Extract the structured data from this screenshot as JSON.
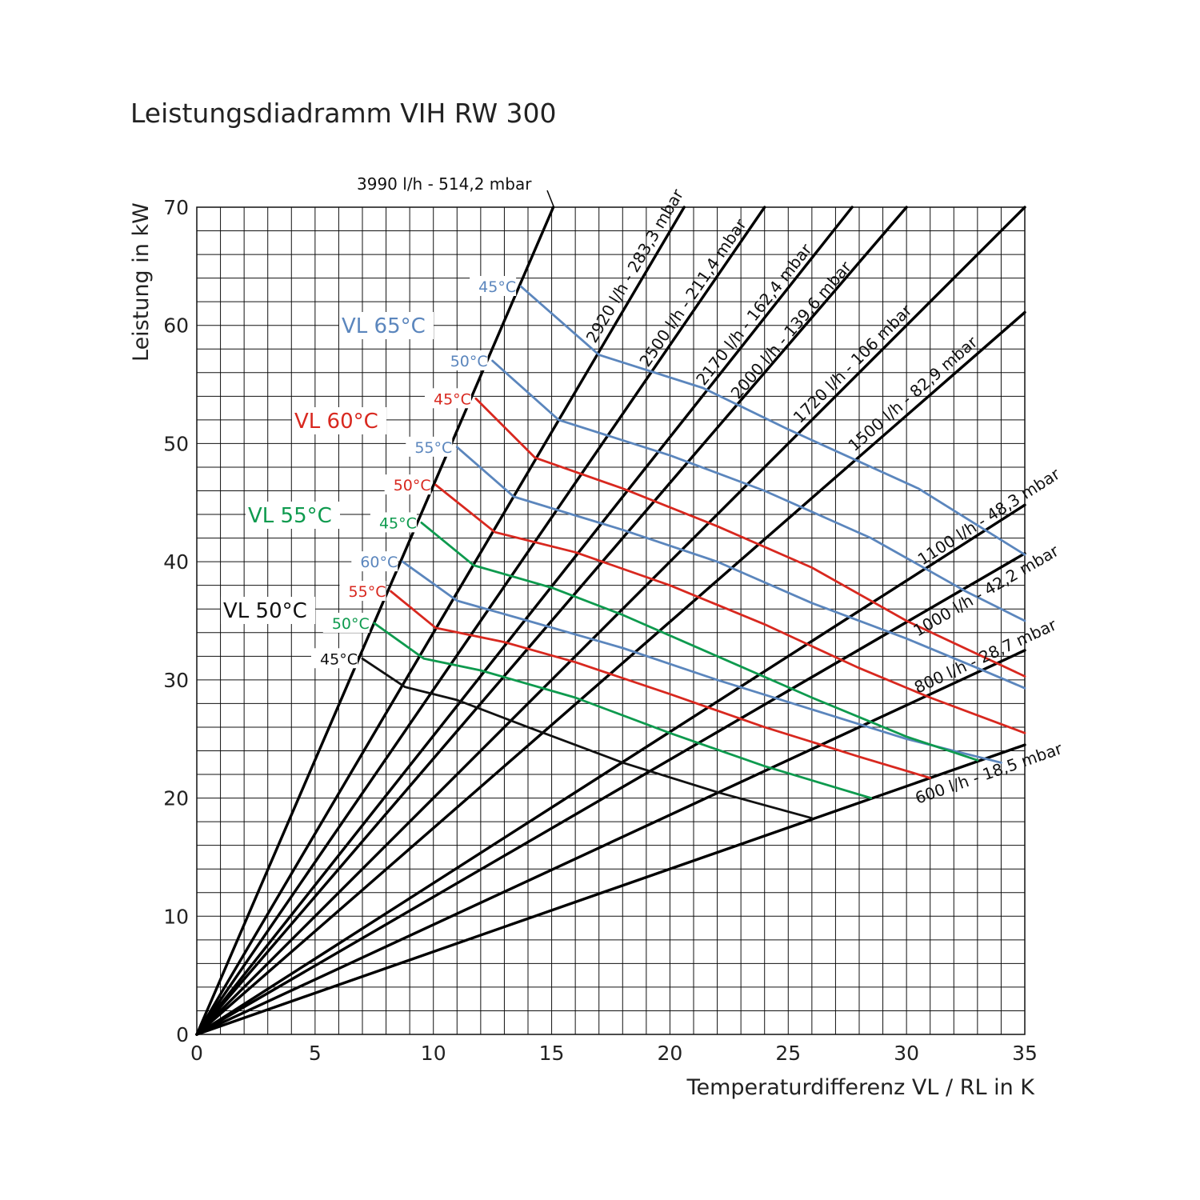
{
  "chart_data": {
    "type": "line",
    "title": "Leistungsdiadramm VIH RW 300",
    "xlabel": "Temperaturdifferenz VL / RL in K",
    "ylabel": "Leistung in kW",
    "xlim": [
      0,
      35
    ],
    "ylim": [
      0,
      70
    ],
    "x_ticks": [
      "0",
      "5",
      "10",
      "15",
      "20",
      "25",
      "30",
      "35"
    ],
    "y_ticks": [
      "0",
      "10",
      "20",
      "30",
      "40",
      "50",
      "60",
      "70"
    ],
    "grid": true,
    "colors": {
      "VL 65°C": "#5b86bd",
      "VL 60°C": "#d8281f",
      "VL 55°C": "#0e9a4e",
      "VL 50°C": "#111111",
      "flow_lines": "#000000"
    },
    "flow_lines": [
      {
        "label": "3990 l/h - 514,2 mbar",
        "end": [
          15.07,
          70
        ]
      },
      {
        "label": "2920 l/h - 283,3 mbar",
        "end": [
          20.6,
          70
        ]
      },
      {
        "label": "2500 l/h - 211,4 mbar",
        "end": [
          24.0,
          70
        ]
      },
      {
        "label": "2170 l/h - 162,4 mbar",
        "end": [
          27.7,
          70
        ]
      },
      {
        "label": "2000 l/h - 139,6 mbar",
        "end": [
          30.0,
          70
        ]
      },
      {
        "label": "1720 l/h - 106 mbar",
        "end": [
          35,
          70
        ]
      },
      {
        "label": "1500 l/h - 82,9 mbar",
        "end": [
          35,
          61.1
        ]
      },
      {
        "label": "1100 l/h - 48,3 mbar",
        "end": [
          35,
          44.8
        ]
      },
      {
        "label": "1000 l/h - 42,2 mbar",
        "end": [
          35,
          40.7
        ]
      },
      {
        "label": "800 l/h - 28,7 mbar",
        "end": [
          35,
          32.5
        ]
      },
      {
        "label": "600 l/h - 18,5 mbar",
        "end": [
          35,
          24.5
        ]
      }
    ],
    "series": [
      {
        "name": "VL 65°C",
        "start_label": "45°C",
        "x": [
          13.7,
          17.0,
          21.4,
          25.0,
          30.5,
          35.0
        ],
        "y": [
          63.3,
          57.5,
          54.7,
          51.2,
          46.2,
          40.6
        ]
      },
      {
        "name": "VL 65°C",
        "start_label": "50°C",
        "x": [
          12.5,
          15.3,
          20.0,
          24.0,
          28.5,
          32.5,
          35.0
        ],
        "y": [
          57.0,
          52.0,
          49.0,
          46.0,
          42.0,
          37.5,
          35.0
        ]
      },
      {
        "name": "VL 65°C",
        "start_label": "55°C",
        "x": [
          11.0,
          13.4,
          18.0,
          22.0,
          26.0,
          30.0,
          33.0,
          35.0
        ],
        "y": [
          49.7,
          45.5,
          42.7,
          40.0,
          36.5,
          33.5,
          31.0,
          29.3
        ]
      },
      {
        "name": "VL 65°C",
        "start_label": "60°C",
        "x": [
          8.7,
          11.0,
          14.0,
          18.0,
          22.0,
          26.0,
          30.0,
          34.0
        ],
        "y": [
          40.0,
          36.7,
          35.0,
          32.7,
          30.0,
          27.5,
          25.0,
          23.0
        ]
      },
      {
        "name": "VL 60°C",
        "start_label": "45°C",
        "x": [
          11.8,
          14.3,
          18.0,
          22.0,
          26.0,
          30.0,
          35.0
        ],
        "y": [
          53.8,
          48.8,
          46.2,
          43.0,
          39.5,
          35.0,
          30.3
        ]
      },
      {
        "name": "VL 60°C",
        "start_label": "50°C",
        "x": [
          10.1,
          12.6,
          16.0,
          20.0,
          24.0,
          28.0,
          31.0,
          35.0
        ],
        "y": [
          46.5,
          42.5,
          40.8,
          38.0,
          34.7,
          31.0,
          28.5,
          25.5
        ]
      },
      {
        "name": "VL 60°C",
        "start_label": "55°C",
        "x": [
          8.2,
          10.1,
          13.0,
          16.0,
          20.0,
          24.0,
          28.0,
          31.0
        ],
        "y": [
          37.5,
          34.4,
          33.2,
          31.5,
          28.8,
          26.0,
          23.5,
          21.7
        ]
      },
      {
        "name": "VL 55°C",
        "start_label": "45°C",
        "x": [
          9.5,
          11.7,
          15.0,
          18.0,
          22.0,
          26.0,
          30.0,
          33.0
        ],
        "y": [
          43.3,
          39.7,
          37.8,
          35.5,
          32.0,
          28.5,
          25.2,
          23.2
        ]
      },
      {
        "name": "VL 55°C",
        "start_label": "50°C",
        "x": [
          7.5,
          9.6,
          12.0,
          16.0,
          20.0,
          24.0,
          28.5
        ],
        "y": [
          34.8,
          31.8,
          30.8,
          28.5,
          25.5,
          22.7,
          20.0
        ]
      },
      {
        "name": "VL 50°C",
        "start_label": "45°C",
        "x": [
          7.0,
          8.8,
          11.0,
          14.0,
          18.0,
          22.0,
          26.0
        ],
        "y": [
          31.8,
          29.4,
          28.3,
          26.0,
          23.0,
          20.5,
          18.3
        ]
      }
    ],
    "vl_labels": [
      "VL 65°C",
      "VL 60°C",
      "VL 55°C",
      "VL 50°C"
    ]
  }
}
